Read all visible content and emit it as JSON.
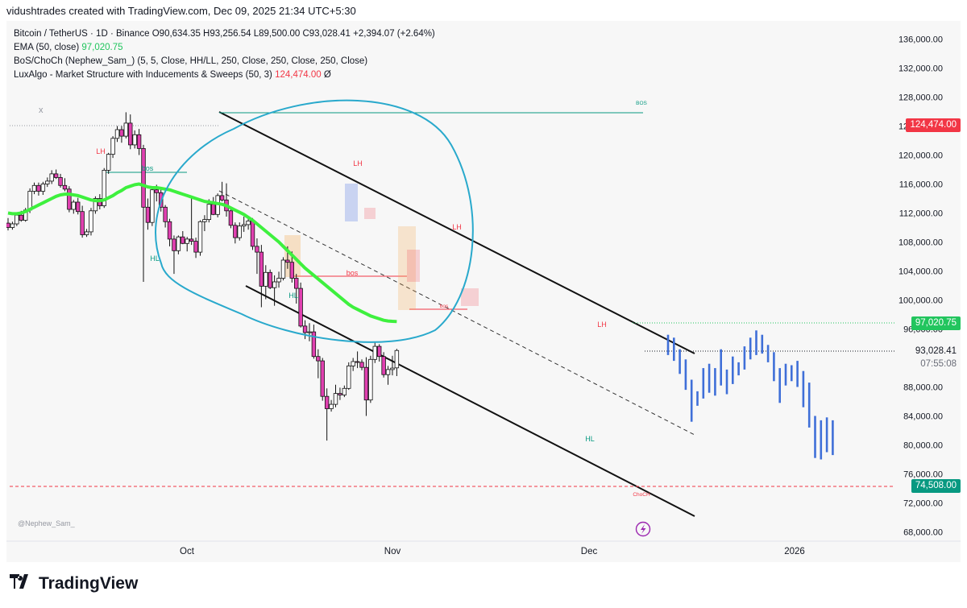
{
  "header": {
    "credit": "vidushtrades created with TradingView.com, Dec 09, 2025 21:34 UTC+5:30"
  },
  "legend": {
    "symbol": "Bitcoin / TetherUS · 1D · Binance",
    "ohlc": "O90,634.35  H93,256.54  L89,500.00  C93,028.41  +2,394.07 (+2.64%)",
    "ema_label": "EMA (50, close)",
    "ema_value": "97,020.75",
    "bos_label": "BoS/ChoCh (Nephew_Sam_) (5, 5, Close, HH/LL, 250, Close, 250, Close, 250, Close)",
    "lux_label": "LuxAlgo - Market Structure with Inducements & Sweeps (50, 3)",
    "lux_value": "124,474.00",
    "lux_suffix": "Ø",
    "close_glyph": "x"
  },
  "price_tags": {
    "lux": "124,474.00",
    "ema": "97,020.75",
    "last": "93,028.41",
    "countdown": "07:55:08",
    "low_line": "74,508.00"
  },
  "watermark": "@Nephew_Sam_",
  "brand": "TradingView",
  "colors": {
    "up": "#ffffff",
    "down": "#e040b0",
    "ema": "#3ef03e",
    "ellipse": "#29a9cc",
    "projection": "#3f6fd8",
    "label_red": "#f23645",
    "label_green": "#089981"
  },
  "chart_data": {
    "type": "candlestick",
    "symbol": "BTCUSDT",
    "timeframe": "1D",
    "x_ticks": [
      "Oct",
      "Nov",
      "Dec",
      "2026"
    ],
    "ylim": [
      66000,
      139000
    ],
    "y_ticks": [
      "136,000.00",
      "132,000.00",
      "128,000.00",
      "124,000.00",
      "120,000.00",
      "116,000.00",
      "112,000.00",
      "108,000.00",
      "104,000.00",
      "100,000.00",
      "96,000.00",
      "93,028.41",
      "88,000.00",
      "84,000.00",
      "80,000.00",
      "76,000.00",
      "72,000.00",
      "68,000.00"
    ],
    "candles": [
      {
        "o": 110600,
        "h": 111300,
        "l": 109600,
        "c": 110000
      },
      {
        "o": 110000,
        "h": 110800,
        "l": 109700,
        "c": 110500
      },
      {
        "o": 110500,
        "h": 112000,
        "l": 110200,
        "c": 111700
      },
      {
        "o": 111700,
        "h": 112300,
        "l": 110800,
        "c": 111000
      },
      {
        "o": 111000,
        "h": 112700,
        "l": 110800,
        "c": 112400
      },
      {
        "o": 112400,
        "h": 115400,
        "l": 112000,
        "c": 115000
      },
      {
        "o": 115000,
        "h": 116200,
        "l": 114600,
        "c": 115800
      },
      {
        "o": 115800,
        "h": 116200,
        "l": 114400,
        "c": 115000
      },
      {
        "o": 115000,
        "h": 116300,
        "l": 114500,
        "c": 116000
      },
      {
        "o": 116000,
        "h": 116900,
        "l": 115600,
        "c": 116400
      },
      {
        "o": 116400,
        "h": 117900,
        "l": 116000,
        "c": 117400
      },
      {
        "o": 117400,
        "h": 118000,
        "l": 116700,
        "c": 116900
      },
      {
        "o": 116900,
        "h": 117400,
        "l": 115500,
        "c": 115800
      },
      {
        "o": 115800,
        "h": 116800,
        "l": 115000,
        "c": 115300
      },
      {
        "o": 115300,
        "h": 115700,
        "l": 112100,
        "c": 112500
      },
      {
        "o": 112500,
        "h": 113800,
        "l": 111900,
        "c": 113500
      },
      {
        "o": 113500,
        "h": 114100,
        "l": 111800,
        "c": 112200
      },
      {
        "o": 112200,
        "h": 113000,
        "l": 108600,
        "c": 109000
      },
      {
        "o": 109000,
        "h": 109800,
        "l": 108700,
        "c": 109400
      },
      {
        "o": 109400,
        "h": 112700,
        "l": 108900,
        "c": 112300
      },
      {
        "o": 112300,
        "h": 114300,
        "l": 111900,
        "c": 114000
      },
      {
        "o": 114000,
        "h": 114600,
        "l": 112500,
        "c": 113000
      },
      {
        "o": 113000,
        "h": 118200,
        "l": 112700,
        "c": 117900
      },
      {
        "o": 117900,
        "h": 120300,
        "l": 117400,
        "c": 120100
      },
      {
        "o": 120100,
        "h": 122600,
        "l": 119600,
        "c": 122300
      },
      {
        "o": 122300,
        "h": 124000,
        "l": 121800,
        "c": 123500
      },
      {
        "o": 123500,
        "h": 124000,
        "l": 121700,
        "c": 122600
      },
      {
        "o": 122600,
        "h": 125900,
        "l": 122300,
        "c": 124400
      },
      {
        "o": 124400,
        "h": 125600,
        "l": 120800,
        "c": 121400
      },
      {
        "o": 121400,
        "h": 123400,
        "l": 120900,
        "c": 122800
      },
      {
        "o": 122800,
        "h": 123600,
        "l": 120000,
        "c": 120900
      },
      {
        "o": 120900,
        "h": 121400,
        "l": 102500,
        "c": 112800
      },
      {
        "o": 112800,
        "h": 114000,
        "l": 109700,
        "c": 110700
      },
      {
        "o": 110700,
        "h": 115600,
        "l": 110200,
        "c": 115200
      },
      {
        "o": 115200,
        "h": 115900,
        "l": 113600,
        "c": 114800
      },
      {
        "o": 114800,
        "h": 115500,
        "l": 112200,
        "c": 112800
      },
      {
        "o": 112800,
        "h": 113100,
        "l": 110000,
        "c": 110800
      },
      {
        "o": 110800,
        "h": 111200,
        "l": 107400,
        "c": 108400
      },
      {
        "o": 108400,
        "h": 108900,
        "l": 103600,
        "c": 106800
      },
      {
        "o": 106800,
        "h": 108900,
        "l": 106300,
        "c": 108700
      },
      {
        "o": 108700,
        "h": 109500,
        "l": 107700,
        "c": 107800
      },
      {
        "o": 107800,
        "h": 108700,
        "l": 106700,
        "c": 108400
      },
      {
        "o": 108400,
        "h": 114000,
        "l": 107600,
        "c": 108100
      },
      {
        "o": 108100,
        "h": 108600,
        "l": 105800,
        "c": 106600
      },
      {
        "o": 106600,
        "h": 111000,
        "l": 106100,
        "c": 110800
      },
      {
        "o": 110800,
        "h": 111700,
        "l": 109500,
        "c": 111100
      },
      {
        "o": 111100,
        "h": 113900,
        "l": 110700,
        "c": 113200
      },
      {
        "o": 113200,
        "h": 114200,
        "l": 111700,
        "c": 111800
      },
      {
        "o": 111800,
        "h": 114700,
        "l": 111400,
        "c": 114400
      },
      {
        "o": 114400,
        "h": 116300,
        "l": 113600,
        "c": 113800
      },
      {
        "o": 113800,
        "h": 116100,
        "l": 111500,
        "c": 112300
      },
      {
        "o": 112300,
        "h": 112500,
        "l": 109900,
        "c": 110300
      },
      {
        "o": 110300,
        "h": 110700,
        "l": 107800,
        "c": 108600
      },
      {
        "o": 108600,
        "h": 110700,
        "l": 108200,
        "c": 110200
      },
      {
        "o": 110200,
        "h": 111500,
        "l": 109400,
        "c": 110400
      },
      {
        "o": 110400,
        "h": 111200,
        "l": 109700,
        "c": 110900
      },
      {
        "o": 110900,
        "h": 111300,
        "l": 106900,
        "c": 107400
      },
      {
        "o": 107400,
        "h": 108500,
        "l": 103600,
        "c": 106600
      },
      {
        "o": 106600,
        "h": 107600,
        "l": 99000,
        "c": 101900
      },
      {
        "o": 101900,
        "h": 104800,
        "l": 100100,
        "c": 103800
      },
      {
        "o": 103800,
        "h": 104200,
        "l": 101500,
        "c": 101700
      },
      {
        "o": 101700,
        "h": 103400,
        "l": 99200,
        "c": 102500
      },
      {
        "o": 102500,
        "h": 103900,
        "l": 101700,
        "c": 103000
      },
      {
        "o": 103000,
        "h": 105900,
        "l": 102700,
        "c": 105500
      },
      {
        "o": 105500,
        "h": 107400,
        "l": 104300,
        "c": 105200
      },
      {
        "o": 105200,
        "h": 106700,
        "l": 102400,
        "c": 103000
      },
      {
        "o": 103000,
        "h": 103600,
        "l": 99500,
        "c": 101600
      },
      {
        "o": 101600,
        "h": 102400,
        "l": 96200,
        "c": 96400
      },
      {
        "o": 96400,
        "h": 97200,
        "l": 94600,
        "c": 95500
      },
      {
        "o": 95500,
        "h": 96800,
        "l": 94300,
        "c": 95600
      },
      {
        "o": 95600,
        "h": 96600,
        "l": 91900,
        "c": 92200
      },
      {
        "o": 92200,
        "h": 93200,
        "l": 89200,
        "c": 91600
      },
      {
        "o": 91600,
        "h": 92000,
        "l": 86100,
        "c": 86700
      },
      {
        "o": 86700,
        "h": 87800,
        "l": 80600,
        "c": 85000
      },
      {
        "o": 85000,
        "h": 86200,
        "l": 84600,
        "c": 85600
      },
      {
        "o": 85600,
        "h": 88300,
        "l": 85200,
        "c": 87100
      },
      {
        "o": 87100,
        "h": 87900,
        "l": 86200,
        "c": 86900
      },
      {
        "o": 86900,
        "h": 88200,
        "l": 86600,
        "c": 87800
      },
      {
        "o": 87800,
        "h": 91400,
        "l": 87600,
        "c": 90900
      },
      {
        "o": 90900,
        "h": 92000,
        "l": 90200,
        "c": 91500
      },
      {
        "o": 91500,
        "h": 92900,
        "l": 90600,
        "c": 91400
      },
      {
        "o": 91400,
        "h": 91800,
        "l": 90300,
        "c": 90700
      },
      {
        "o": 90700,
        "h": 92100,
        "l": 84000,
        "c": 86200
      },
      {
        "o": 86200,
        "h": 92300,
        "l": 85800,
        "c": 91800
      },
      {
        "o": 91800,
        "h": 94100,
        "l": 91300,
        "c": 93600
      },
      {
        "o": 93600,
        "h": 93900,
        "l": 91500,
        "c": 92200
      },
      {
        "o": 92200,
        "h": 92800,
        "l": 89300,
        "c": 89700
      },
      {
        "o": 89700,
        "h": 90900,
        "l": 88300,
        "c": 90400
      },
      {
        "o": 90400,
        "h": 92300,
        "l": 89600,
        "c": 90600
      },
      {
        "o": 90634.35,
        "h": 93256.54,
        "l": 89500,
        "c": 93028.41
      }
    ],
    "ema": [
      112000,
      111900,
      111900,
      112000,
      112200,
      112500,
      112800,
      113100,
      113400,
      113700,
      114000,
      114300,
      114500,
      114600,
      114600,
      114500,
      114400,
      114200,
      114000,
      113800,
      113700,
      113700,
      113800,
      114100,
      114400,
      114800,
      115100,
      115500,
      115700,
      115900,
      116000,
      115800,
      115600,
      115500,
      115500,
      115400,
      115300,
      115200,
      115000,
      114800,
      114600,
      114400,
      114200,
      114000,
      113800,
      113600,
      113500,
      113400,
      113300,
      113200,
      113000,
      112700,
      112400,
      112100,
      111800,
      111400,
      111000,
      110500,
      110000,
      109500,
      109000,
      108500,
      108000,
      107400,
      106800,
      106200,
      105600,
      105000,
      104400,
      103900,
      103400,
      102900,
      102400,
      101900,
      101400,
      100900,
      100400,
      99900,
      99400,
      99000,
      98700,
      98400,
      98100,
      97800,
      97600,
      97400,
      97200,
      97100,
      97050,
      97020.75
    ],
    "projection_bars": [
      {
        "h": 95200,
        "l": 92400
      },
      {
        "h": 94800,
        "l": 91600
      },
      {
        "h": 93200,
        "l": 89800
      },
      {
        "h": 91800,
        "l": 87600
      },
      {
        "h": 89000,
        "l": 83200
      },
      {
        "h": 87400,
        "l": 85400
      },
      {
        "h": 90600,
        "l": 86400
      },
      {
        "h": 91200,
        "l": 87200
      },
      {
        "h": 90600,
        "l": 86800
      },
      {
        "h": 93200,
        "l": 88200
      },
      {
        "h": 90400,
        "l": 87000
      },
      {
        "h": 92200,
        "l": 88400
      },
      {
        "h": 91400,
        "l": 89600
      },
      {
        "h": 93600,
        "l": 90400
      },
      {
        "h": 94800,
        "l": 91800
      },
      {
        "h": 95800,
        "l": 92400
      },
      {
        "h": 95200,
        "l": 92600
      },
      {
        "h": 93800,
        "l": 91400
      },
      {
        "h": 92800,
        "l": 88800
      },
      {
        "h": 90600,
        "l": 85800
      },
      {
        "h": 91200,
        "l": 88200
      },
      {
        "h": 91000,
        "l": 88800
      },
      {
        "h": 91600,
        "l": 88000
      },
      {
        "h": 90200,
        "l": 85200
      },
      {
        "h": 88600,
        "l": 82400
      },
      {
        "h": 84000,
        "l": 78200
      },
      {
        "h": 83400,
        "l": 78000
      },
      {
        "h": 83800,
        "l": 79000
      },
      {
        "h": 83400,
        "l": 78600
      }
    ],
    "annotations": [
      {
        "text": "LH",
        "color": "red"
      },
      {
        "text": "bos",
        "color": "green"
      },
      {
        "text": "HL",
        "color": "green"
      },
      {
        "text": "LH",
        "color": "red"
      },
      {
        "text": "bos",
        "color": "red"
      },
      {
        "text": "HL",
        "color": "green"
      },
      {
        "text": "LH",
        "color": "red"
      },
      {
        "text": "bos",
        "color": "red"
      },
      {
        "text": "LH",
        "color": "red"
      },
      {
        "text": "HL",
        "color": "green"
      },
      {
        "text": "BOS",
        "color": "green"
      },
      {
        "text": "ChoCH",
        "color": "red"
      }
    ]
  }
}
